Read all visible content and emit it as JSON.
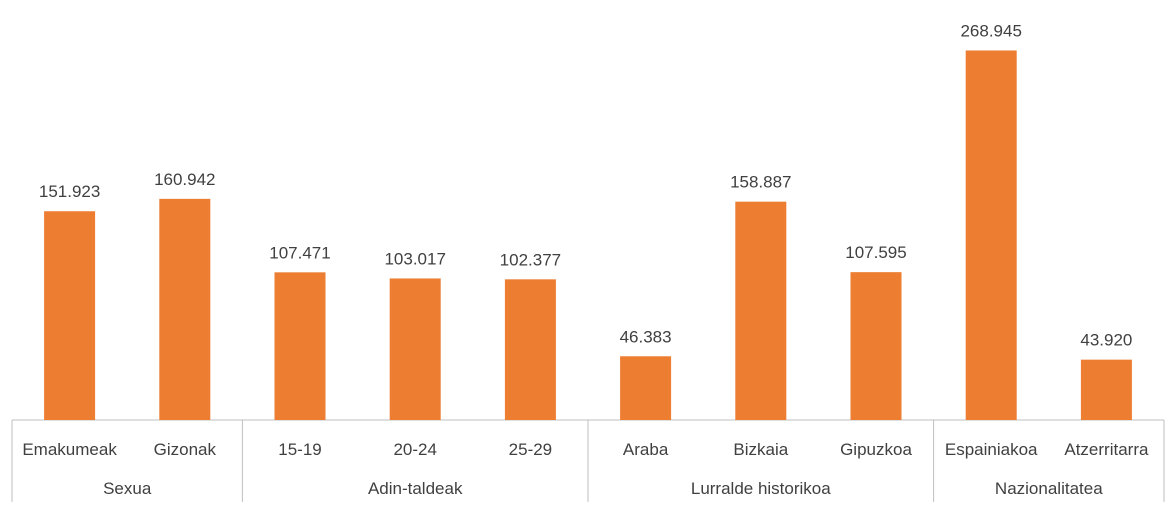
{
  "chart_data": {
    "type": "bar",
    "color": "#ED7D31",
    "axis_color": "#BFBFBF",
    "text_color": "#404040",
    "ylim": [
      0,
      280000
    ],
    "grid": false,
    "legend": "none",
    "groups": [
      {
        "name": "Sexua",
        "categories": [
          "Emakumeak",
          "Gizonak"
        ]
      },
      {
        "name": "Adin-taldeak",
        "categories": [
          "15-19",
          "20-24",
          "25-29"
        ]
      },
      {
        "name": "Lurralde historikoa",
        "categories": [
          "Araba",
          "Bizkaia",
          "Gipuzkoa"
        ]
      },
      {
        "name": "Nazionalitatea",
        "categories": [
          "Espainiakoa",
          "Atzerritarra"
        ]
      }
    ],
    "categories": [
      "Emakumeak",
      "Gizonak",
      "15-19",
      "20-24",
      "25-29",
      "Araba",
      "Bizkaia",
      "Gipuzkoa",
      "Espainiakoa",
      "Atzerritarra"
    ],
    "values": [
      151923,
      160942,
      107471,
      103017,
      102377,
      46383,
      158887,
      107595,
      268945,
      43920
    ],
    "labels": [
      "151.923",
      "160.942",
      "107.471",
      "103.017",
      "102.377",
      "46.383",
      "158.887",
      "107.595",
      "268.945",
      "43.920"
    ]
  }
}
